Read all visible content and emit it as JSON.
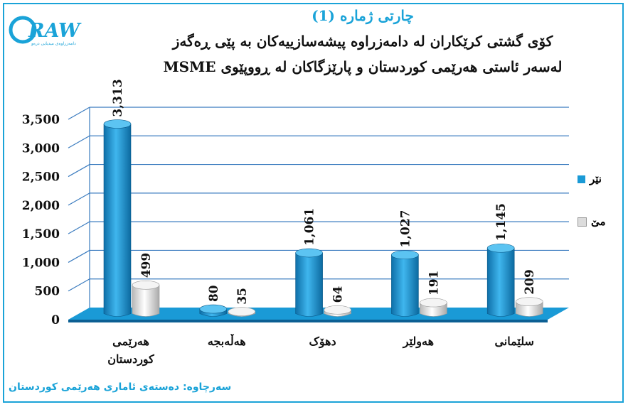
{
  "logo": {
    "text": "DRAW",
    "tagline": "دامەزراوەی میدیایی درەو"
  },
  "title": {
    "line1": "چارتی ژمارە (1)",
    "line2": "کۆی گشتی کرێکاران لە دامەزراوە پیشەسازییەکان بە پێی ڕەگەز",
    "line3": "لەسەر ئاستی هەرێمی کوردستان و پارێزگاکان لە ڕووپێوی MSME"
  },
  "source": "سەرچاوە: دەستەی ئاماری هەرێمی کوردستان",
  "colors": {
    "male": "#1a9ad6",
    "female": "#dcdcdc",
    "floor": "#1a9ad6",
    "grid": "#3a7bbf",
    "accent": "#1aa3d8"
  },
  "chart_data": {
    "type": "bar",
    "categories": [
      "هەرێمی کوردستان",
      "هەڵەبجە",
      "دهۆک",
      "هەولێر",
      "سلێمانی"
    ],
    "series": [
      {
        "name": "نێر",
        "values": [
          3313,
          80,
          1061,
          1027,
          1145
        ],
        "labels": [
          "3,313",
          "80",
          "1,061",
          "1,027",
          "1,145"
        ]
      },
      {
        "name": "مێ",
        "values": [
          499,
          35,
          64,
          191,
          209
        ],
        "labels": [
          "499",
          "35",
          "64",
          "191",
          "209"
        ]
      }
    ],
    "yticks": [
      "0",
      "500",
      "1,000",
      "1,500",
      "2,000",
      "2,500",
      "3,000",
      "3,500"
    ],
    "ylim": [
      0,
      3500
    ],
    "grid": true,
    "legend_position": "right"
  }
}
